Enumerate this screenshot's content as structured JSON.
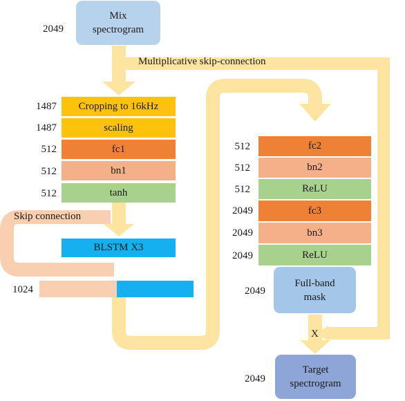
{
  "colors": {
    "arrow": "#fde4a0",
    "skip_band": "#f9cfb1",
    "mix_box": "#b7d3ec",
    "crop": "#fcc20c",
    "scaling": "#fcc20c",
    "fc": "#ef8137",
    "bn": "#f4b088",
    "act": "#a8d18d",
    "blstm": "#16b0ee",
    "mask_box": "#a4c6e8",
    "target_box": "#8ea5d7"
  },
  "blocks": {
    "mix_spectrogram": {
      "line1": "Mix",
      "line2": "spectrogram",
      "dim": "2049"
    },
    "cropping": {
      "label": "Cropping to 16kHz",
      "dim": "1487"
    },
    "scaling": {
      "label": "scaling",
      "dim": "1487"
    },
    "fc1": {
      "label": "fc1",
      "dim": "512"
    },
    "bn1": {
      "label": "bn1",
      "dim": "512"
    },
    "tanh": {
      "label": "tanh",
      "dim": "512"
    },
    "blstm": {
      "label": "BLSTM X3"
    },
    "concat": {
      "dim": "1024"
    },
    "fc2": {
      "label": "fc2",
      "dim": "512"
    },
    "bn2": {
      "label": "bn2",
      "dim": "512"
    },
    "relu1": {
      "label": "ReLU",
      "dim": "512"
    },
    "fc3": {
      "label": "fc3",
      "dim": "2049"
    },
    "bn3": {
      "label": "bn3",
      "dim": "2049"
    },
    "relu2": {
      "label": "ReLU",
      "dim": "2049"
    },
    "full_band_mask": {
      "line1": "Full-band",
      "line2": "mask",
      "dim": "2049"
    },
    "target_spectrogram": {
      "line1": "Target",
      "line2": "spectrogram",
      "dim": "2049"
    }
  },
  "labels": {
    "multiplicative_skip": "Multiplicative skip-connection",
    "skip_connection": "Skip connection",
    "multiply": "X"
  }
}
